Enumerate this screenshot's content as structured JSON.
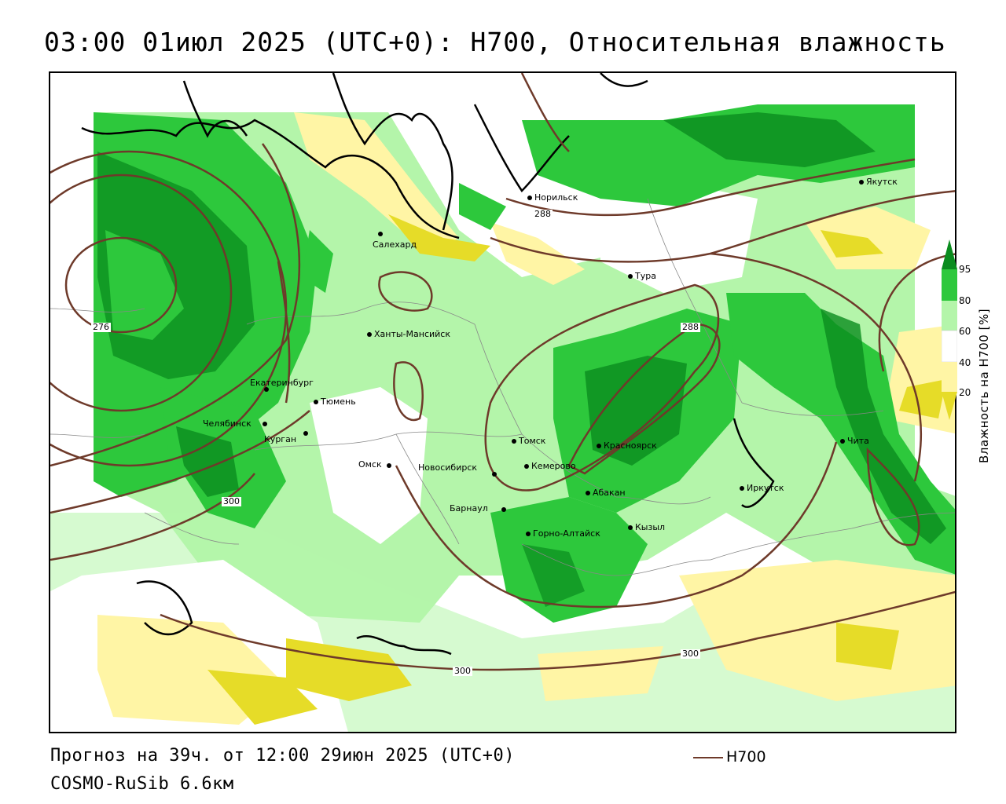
{
  "title": "03:00 01июл 2025 (UTC+0): H700, Относительная влажность",
  "footer": {
    "forecast": "Прогноз на 39ч. от 12:00 29июн 2025 (UTC+0)",
    "model": "COSMO-RuSib 6.6км"
  },
  "legend": {
    "label": "H700",
    "color": "#6e3a2a"
  },
  "colorbar": {
    "title": "Влажность на H700 [%]",
    "ticks": [
      "95",
      "80",
      "60",
      "40",
      "20"
    ],
    "colors": {
      "dark_green": "#0a8c1e",
      "green": "#2dc83c",
      "light_green": "#b4f5aa",
      "white": "#ffffff",
      "light_yellow": "#fff5a5",
      "yellow": "#e6dc28"
    }
  },
  "contour_labels": [
    "276",
    "288",
    "288",
    "300",
    "300",
    "300"
  ],
  "cities": [
    {
      "name": "Норильск"
    },
    {
      "name": "Якутск"
    },
    {
      "name": "Салехард"
    },
    {
      "name": "Тура"
    },
    {
      "name": "Ханты-Мансийск"
    },
    {
      "name": "Екатеринбург"
    },
    {
      "name": "Тюмень"
    },
    {
      "name": "Челябинск"
    },
    {
      "name": "Курган"
    },
    {
      "name": "Омск"
    },
    {
      "name": "Новосибирск"
    },
    {
      "name": "Томск"
    },
    {
      "name": "Кемерово"
    },
    {
      "name": "Красноярск"
    },
    {
      "name": "Абакан"
    },
    {
      "name": "Барнаул"
    },
    {
      "name": "Горно-Алтайск"
    },
    {
      "name": "Кызыл"
    },
    {
      "name": "Иркутск"
    },
    {
      "name": "Чита"
    }
  ]
}
